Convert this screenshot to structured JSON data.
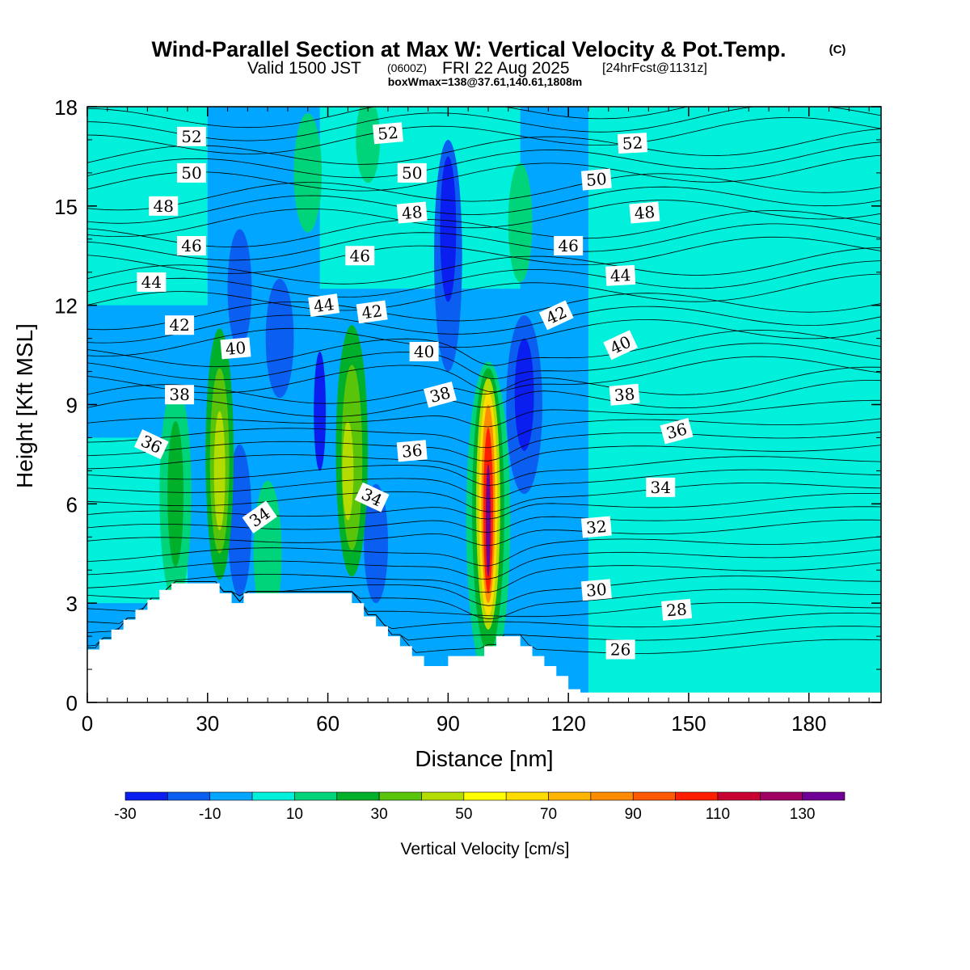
{
  "header": {
    "title": "Wind-Parallel Section at Max W: Vertical Velocity & Pot.Temp.",
    "copyright": "(C)",
    "valid_prefix": "Valid 1500 JST",
    "valid_utc": "(0600Z)",
    "valid_date": "FRI 22 Aug 2025",
    "forecast": "[24hrFcst@1131z]",
    "box_info": "boxWmax=138@37.61,140.61,1808m"
  },
  "chart_data": {
    "type": "heatmap",
    "title": "Wind-Parallel Section at Max W: Vertical Velocity & Pot.Temp.",
    "xlabel": "Distance [nm]",
    "ylabel": "Height [Kft MSL]",
    "xlim": [
      0,
      198
    ],
    "ylim": [
      0,
      18
    ],
    "x_ticks": [
      "0",
      "30",
      "60",
      "90",
      "120",
      "150",
      "180"
    ],
    "y_ticks": [
      "0",
      "3",
      "6",
      "9",
      "12",
      "15",
      "18"
    ],
    "colorbar": {
      "label": "Vertical Velocity [cm/s]",
      "levels": [
        -30,
        -20,
        -10,
        0,
        10,
        20,
        30,
        40,
        50,
        60,
        70,
        80,
        90,
        100,
        110,
        120,
        130,
        140
      ],
      "colors": [
        "#0a1ef0",
        "#0a5ff0",
        "#00a6ff",
        "#00f0dc",
        "#00d47a",
        "#00b02a",
        "#5ac40a",
        "#b4dc00",
        "#ffff00",
        "#ffdc00",
        "#ffb400",
        "#ff8c00",
        "#ff5a00",
        "#ff1e00",
        "#c80032",
        "#a00064",
        "#6e0096"
      ],
      "tick_labels": [
        "-30",
        "-10",
        "10",
        "30",
        "50",
        "70",
        "90",
        "110",
        "130"
      ]
    },
    "background_value": -5,
    "cells": [
      {
        "x": 0,
        "y": 12,
        "w": 30,
        "h": 6,
        "value": 5
      },
      {
        "x": 125,
        "y": 0,
        "w": 73,
        "h": 18,
        "value": 5
      },
      {
        "x": 58,
        "y": 12.5,
        "w": 50,
        "h": 5.5,
        "value": 5
      },
      {
        "x": 0,
        "y": 3,
        "w": 25,
        "h": 5,
        "value": 5
      }
    ],
    "cells_layer2": [
      {
        "x": 22,
        "y": 6.3,
        "rx": 4,
        "ry": 3.3,
        "value": 15
      },
      {
        "x": 22,
        "y": 6.3,
        "rx": 2,
        "ry": 2.2,
        "value": 25
      },
      {
        "x": 33,
        "y": 7.5,
        "rx": 3.5,
        "ry": 3.8,
        "value": 25
      },
      {
        "x": 33,
        "y": 7.3,
        "rx": 2.4,
        "ry": 2.8,
        "value": 35
      },
      {
        "x": 33,
        "y": 7.0,
        "rx": 1.4,
        "ry": 1.8,
        "value": 45
      },
      {
        "x": 66,
        "y": 7.6,
        "rx": 4,
        "ry": 3.8,
        "value": 25
      },
      {
        "x": 66,
        "y": 7.4,
        "rx": 2.6,
        "ry": 2.8,
        "value": 35
      },
      {
        "x": 65,
        "y": 7.0,
        "rx": 1.4,
        "ry": 1.5,
        "value": 45
      },
      {
        "x": 100,
        "y": 5.5,
        "rx": 5.5,
        "ry": 4.8,
        "value": 15
      },
      {
        "x": 100,
        "y": 5.8,
        "rx": 4,
        "ry": 4.3,
        "value": 25
      },
      {
        "x": 100,
        "y": 6.0,
        "rx": 3,
        "ry": 3.8,
        "value": 45
      },
      {
        "x": 100,
        "y": 6.0,
        "rx": 2.3,
        "ry": 3.4,
        "value": 65
      },
      {
        "x": 100,
        "y": 6.0,
        "rx": 1.7,
        "ry": 3.0,
        "value": 85
      },
      {
        "x": 100,
        "y": 5.8,
        "rx": 1.2,
        "ry": 2.5,
        "value": 105
      },
      {
        "x": 100,
        "y": 5.5,
        "rx": 0.6,
        "ry": 1.7,
        "value": 135
      },
      {
        "x": 55,
        "y": 16.0,
        "rx": 3.5,
        "ry": 1.8,
        "value": 15
      },
      {
        "x": 70,
        "y": 17.0,
        "rx": 3,
        "ry": 1.3,
        "value": 15
      },
      {
        "x": 108,
        "y": 14.5,
        "rx": 3,
        "ry": 1.8,
        "value": 15
      },
      {
        "x": 45,
        "y": 4.5,
        "rx": 3.5,
        "ry": 2.2,
        "value": 15
      }
    ],
    "downdrafts": [
      {
        "x": 38,
        "y": 5.5,
        "rx": 3,
        "ry": 2.3,
        "value": -15
      },
      {
        "x": 72,
        "y": 4.8,
        "rx": 3,
        "ry": 1.8,
        "value": -15
      },
      {
        "x": 90,
        "y": 13.5,
        "rx": 3.5,
        "ry": 3.5,
        "value": -15
      },
      {
        "x": 109,
        "y": 9.0,
        "rx": 4.5,
        "ry": 2.7,
        "value": -15
      },
      {
        "x": 109,
        "y": 9.3,
        "rx": 2.4,
        "ry": 1.7,
        "value": -25
      },
      {
        "x": 48,
        "y": 11.0,
        "rx": 3.5,
        "ry": 1.8,
        "value": -15
      },
      {
        "x": 58,
        "y": 8.8,
        "rx": 1.5,
        "ry": 1.8,
        "value": -25
      },
      {
        "x": 38,
        "y": 12.5,
        "rx": 3,
        "ry": 1.8,
        "value": -15
      },
      {
        "x": 90,
        "y": 14.3,
        "rx": 2,
        "ry": 2.2,
        "value": -25
      }
    ],
    "terrain": {
      "x": [
        0,
        3,
        6,
        9,
        12,
        15,
        18,
        21,
        24,
        27,
        30,
        33,
        36,
        39,
        42,
        45,
        48,
        51,
        54,
        57,
        60,
        63,
        66,
        69,
        72,
        75,
        78,
        81,
        84,
        87,
        90,
        93,
        96,
        99,
        102,
        105,
        108,
        111,
        114,
        117,
        120,
        123,
        126,
        129,
        132,
        135,
        138,
        141,
        144,
        147,
        150,
        153,
        156,
        159,
        162,
        165,
        168,
        171,
        174,
        177,
        180,
        183,
        186,
        189,
        192,
        195,
        198
      ],
      "height": [
        1.6,
        1.9,
        2.2,
        2.5,
        2.8,
        3.1,
        3.4,
        3.6,
        3.6,
        3.6,
        3.6,
        3.3,
        3.0,
        3.3,
        3.3,
        3.3,
        3.3,
        3.3,
        3.3,
        3.3,
        3.3,
        3.3,
        3.0,
        2.6,
        2.3,
        2.0,
        1.7,
        1.4,
        1.1,
        1.1,
        1.4,
        1.4,
        1.4,
        1.7,
        2.0,
        2.0,
        1.7,
        1.4,
        1.1,
        0.8,
        0.4,
        0.3,
        0.3,
        0.3,
        0.3,
        0.3,
        0.3,
        0.3,
        0.3,
        0.3,
        0.3,
        0.3,
        0.3,
        0.3,
        0.3,
        0.3,
        0.3,
        0.3,
        0.3,
        0.3,
        0.3,
        0.3,
        0.3,
        0.3,
        0.3,
        0.3,
        0.3
      ]
    },
    "theta_contours": {
      "units": "C",
      "levels": [
        26,
        28,
        30,
        32,
        34,
        36,
        38,
        40,
        42,
        44,
        46,
        48,
        50,
        52
      ],
      "labels": [
        {
          "text": "52",
          "x": 26,
          "y": 17.1,
          "angle": 0
        },
        {
          "text": "52",
          "x": 75,
          "y": 17.2,
          "angle": -5
        },
        {
          "text": "52",
          "x": 136,
          "y": 16.9,
          "angle": -3
        },
        {
          "text": "50",
          "x": 26,
          "y": 16.0,
          "angle": 0
        },
        {
          "text": "50",
          "x": 81,
          "y": 16.0,
          "angle": 0
        },
        {
          "text": "50",
          "x": 127,
          "y": 15.8,
          "angle": -5
        },
        {
          "text": "48",
          "x": 19,
          "y": 15.0,
          "angle": 0
        },
        {
          "text": "48",
          "x": 81,
          "y": 14.8,
          "angle": -5
        },
        {
          "text": "48",
          "x": 139,
          "y": 14.8,
          "angle": -5
        },
        {
          "text": "46",
          "x": 26,
          "y": 13.8,
          "angle": 0
        },
        {
          "text": "46",
          "x": 68,
          "y": 13.5,
          "angle": 0
        },
        {
          "text": "46",
          "x": 120,
          "y": 13.8,
          "angle": 0
        },
        {
          "text": "44",
          "x": 16,
          "y": 12.7,
          "angle": 0
        },
        {
          "text": "44",
          "x": 59,
          "y": 12.0,
          "angle": -8
        },
        {
          "text": "44",
          "x": 133,
          "y": 12.9,
          "angle": -3
        },
        {
          "text": "42",
          "x": 23,
          "y": 11.4,
          "angle": 0
        },
        {
          "text": "42",
          "x": 71,
          "y": 11.8,
          "angle": -8
        },
        {
          "text": "42",
          "x": 117,
          "y": 11.7,
          "angle": -25
        },
        {
          "text": "40",
          "x": 37,
          "y": 10.7,
          "angle": -5
        },
        {
          "text": "40",
          "x": 84,
          "y": 10.6,
          "angle": 0
        },
        {
          "text": "40",
          "x": 133,
          "y": 10.8,
          "angle": -25
        },
        {
          "text": "38",
          "x": 23,
          "y": 9.3,
          "angle": 0
        },
        {
          "text": "38",
          "x": 88,
          "y": 9.3,
          "angle": -15
        },
        {
          "text": "38",
          "x": 134,
          "y": 9.3,
          "angle": -5
        },
        {
          "text": "36",
          "x": 16,
          "y": 7.8,
          "angle": 25
        },
        {
          "text": "36",
          "x": 81,
          "y": 7.6,
          "angle": -5
        },
        {
          "text": "36",
          "x": 147,
          "y": 8.2,
          "angle": -15
        },
        {
          "text": "34",
          "x": 43,
          "y": 5.6,
          "angle": -35
        },
        {
          "text": "34",
          "x": 71,
          "y": 6.2,
          "angle": 25
        },
        {
          "text": "34",
          "x": 143,
          "y": 6.5,
          "angle": 0
        },
        {
          "text": "32",
          "x": 127,
          "y": 5.3,
          "angle": -5
        },
        {
          "text": "30",
          "x": 127,
          "y": 3.4,
          "angle": -5
        },
        {
          "text": "28",
          "x": 147,
          "y": 2.8,
          "angle": -5
        },
        {
          "text": "26",
          "x": 133,
          "y": 1.6,
          "angle": 0
        }
      ]
    }
  }
}
